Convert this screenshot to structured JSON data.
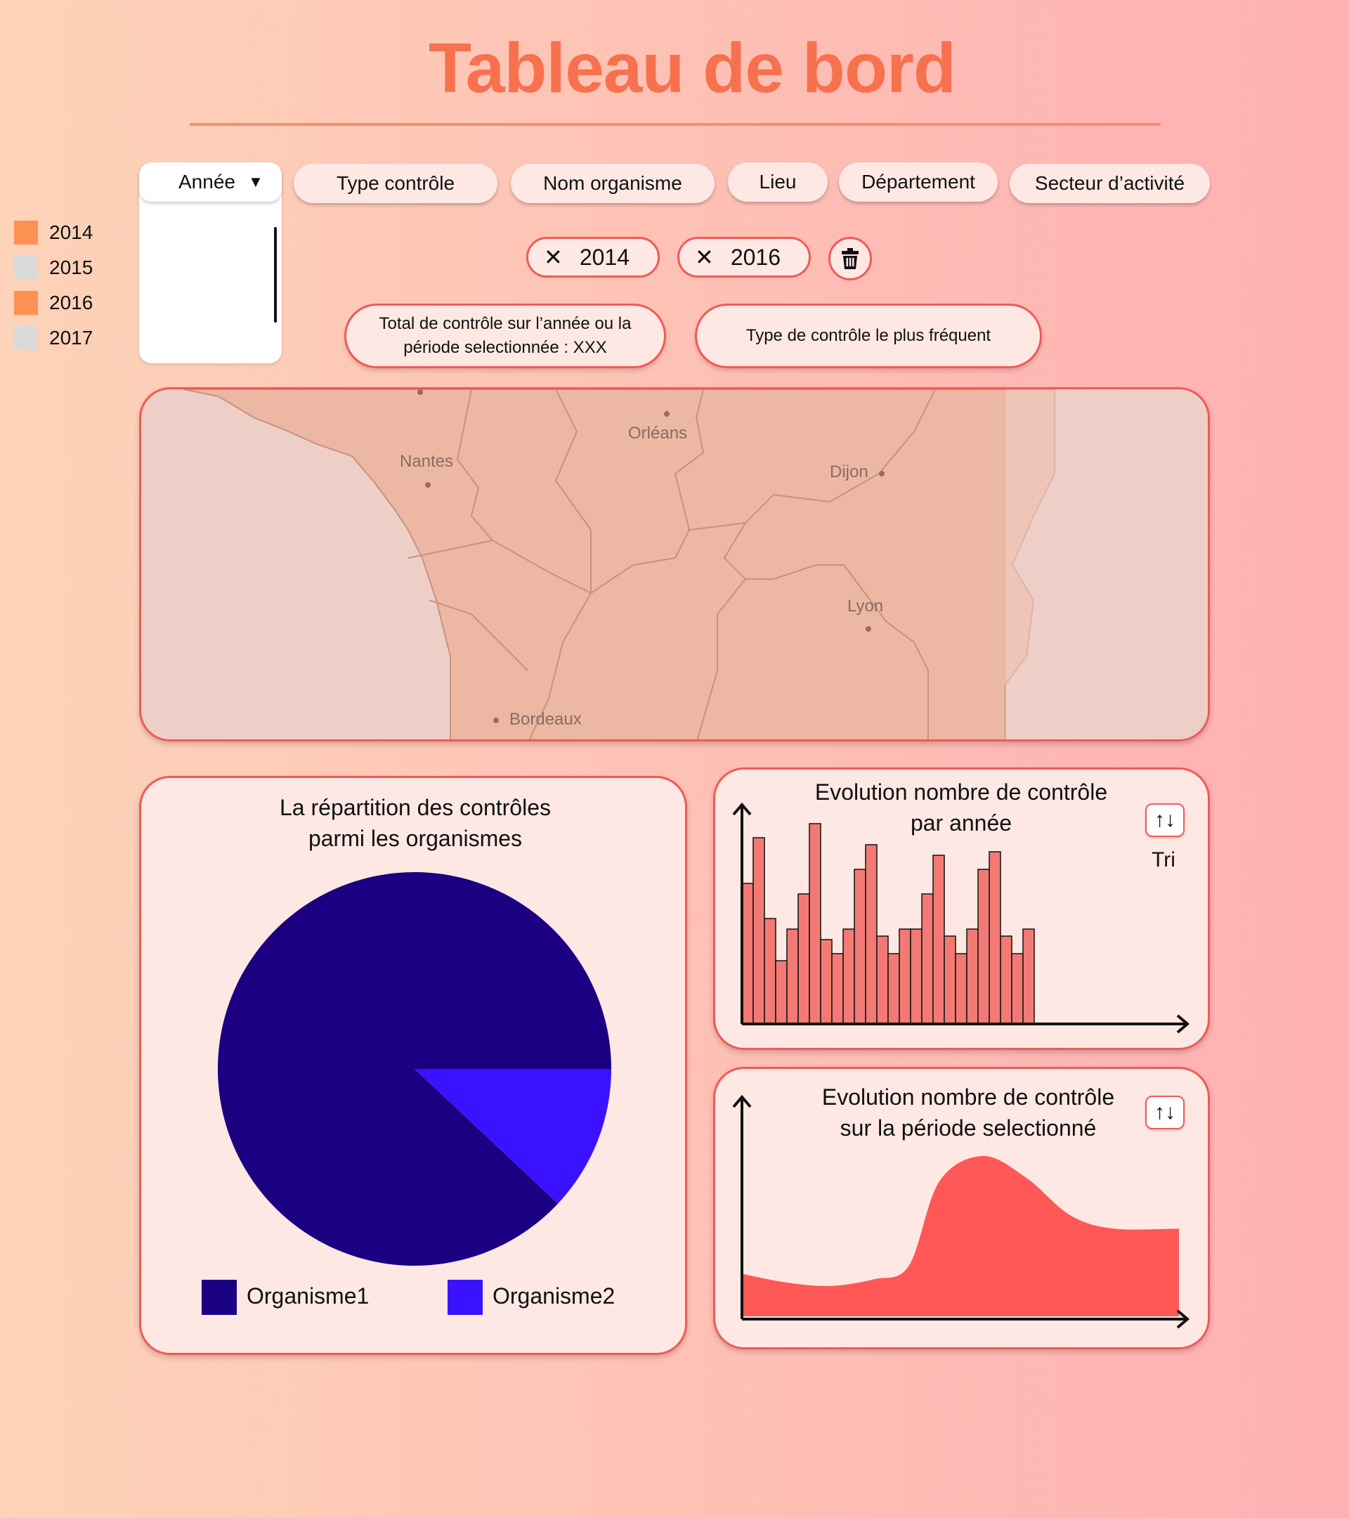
{
  "page": {
    "title": "Tableau de bord"
  },
  "filters": {
    "annee": "Année",
    "type_controle": "Type contrôle",
    "nom_organisme": "Nom organisme",
    "lieu": "Lieu",
    "departement": "Département",
    "secteur": "Secteur d’activité"
  },
  "year_dropdown": {
    "options": [
      {
        "label": "2014",
        "selected": true
      },
      {
        "label": "2015",
        "selected": false
      },
      {
        "label": "2016",
        "selected": true
      },
      {
        "label": "2017",
        "selected": false
      }
    ]
  },
  "active_filters": [
    "2014",
    "2016"
  ],
  "info_boxes": {
    "total_line1": "Total de contrôle sur l’année ou la",
    "total_line2": "période selectionnée : XXX",
    "frequent": "Type de contrôle le plus fréquent"
  },
  "map": {
    "cities": [
      "Nantes",
      "Orléans",
      "Dijon",
      "Lyon",
      "Bordeaux"
    ]
  },
  "pie_card": {
    "title_line1": "La répartition des contrôles",
    "title_line2": "parmi les organismes",
    "legend": [
      "Organisme1",
      "Organisme2"
    ]
  },
  "bar_card": {
    "title_line1": "Evolution nombre de contrôle",
    "title_line2": "par année",
    "sort_label": "Tri"
  },
  "area_card": {
    "title_line1": "Evolution nombre de contrôle",
    "title_line2": "sur la période selectionné"
  },
  "colors": {
    "accent": "#f7714f",
    "border": "#f25a56",
    "organisme1": "#1c0082",
    "organisme2": "#3b12ff",
    "bar": "#f37a74",
    "area": "#fe5856",
    "year_selected": "#fd9153",
    "year_unselected": "#d9d9d9"
  },
  "chart_data": [
    {
      "type": "pie",
      "categories": [
        "Organisme1",
        "Organisme2"
      ],
      "values": [
        88,
        12
      ]
    },
    {
      "type": "bar",
      "values": [
        40,
        53,
        30,
        18,
        27,
        37,
        57,
        24,
        20,
        27,
        44,
        51,
        25,
        20,
        27,
        27,
        37,
        48,
        25,
        20,
        27,
        44,
        49,
        25,
        20,
        27
      ]
    },
    {
      "type": "area",
      "x": [
        0,
        10,
        20,
        30,
        38,
        45,
        55,
        65,
        75,
        85,
        100
      ],
      "values": [
        25,
        20,
        18,
        22,
        30,
        80,
        95,
        82,
        60,
        52,
        52
      ]
    }
  ]
}
